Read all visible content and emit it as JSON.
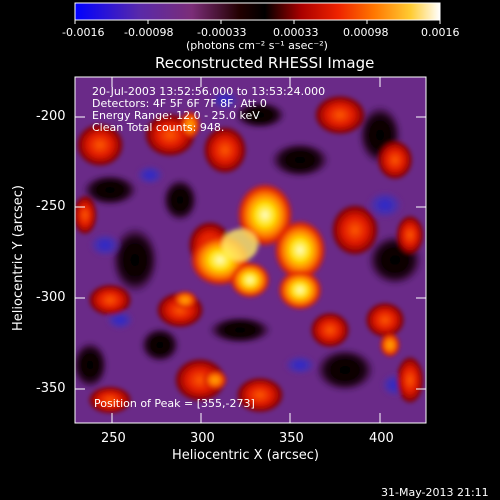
{
  "colorbar": {
    "tick_labels": [
      "-0.0016",
      "-0.00098",
      "-0.00033",
      "0.00033",
      "0.00098",
      "0.0016"
    ],
    "unit_label": "(photons cm⁻² s⁻¹ asec⁻²)"
  },
  "plot": {
    "title": "Reconstructed RHESSI Image",
    "xlabel": "Heliocentric X (arcsec)",
    "ylabel": "Heliocentric Y (arcsec)",
    "x_ticks": [
      "250",
      "300",
      "350",
      "400"
    ],
    "y_ticks": [
      "-200",
      "-250",
      "-300",
      "-350"
    ],
    "info_lines": [
      "20-Jul-2003 13:52:56.000 to 13:53:24.000",
      "Detectors: 4F 5F 6F 7F 8F, Att 0",
      "Energy Range: 12.0 - 25.0 keV",
      "Clean    Total counts: 948."
    ],
    "peak_text": "Position of Peak = [355,-273]"
  },
  "footer": {
    "timestamp": "31-May-2013 21:11"
  }
}
